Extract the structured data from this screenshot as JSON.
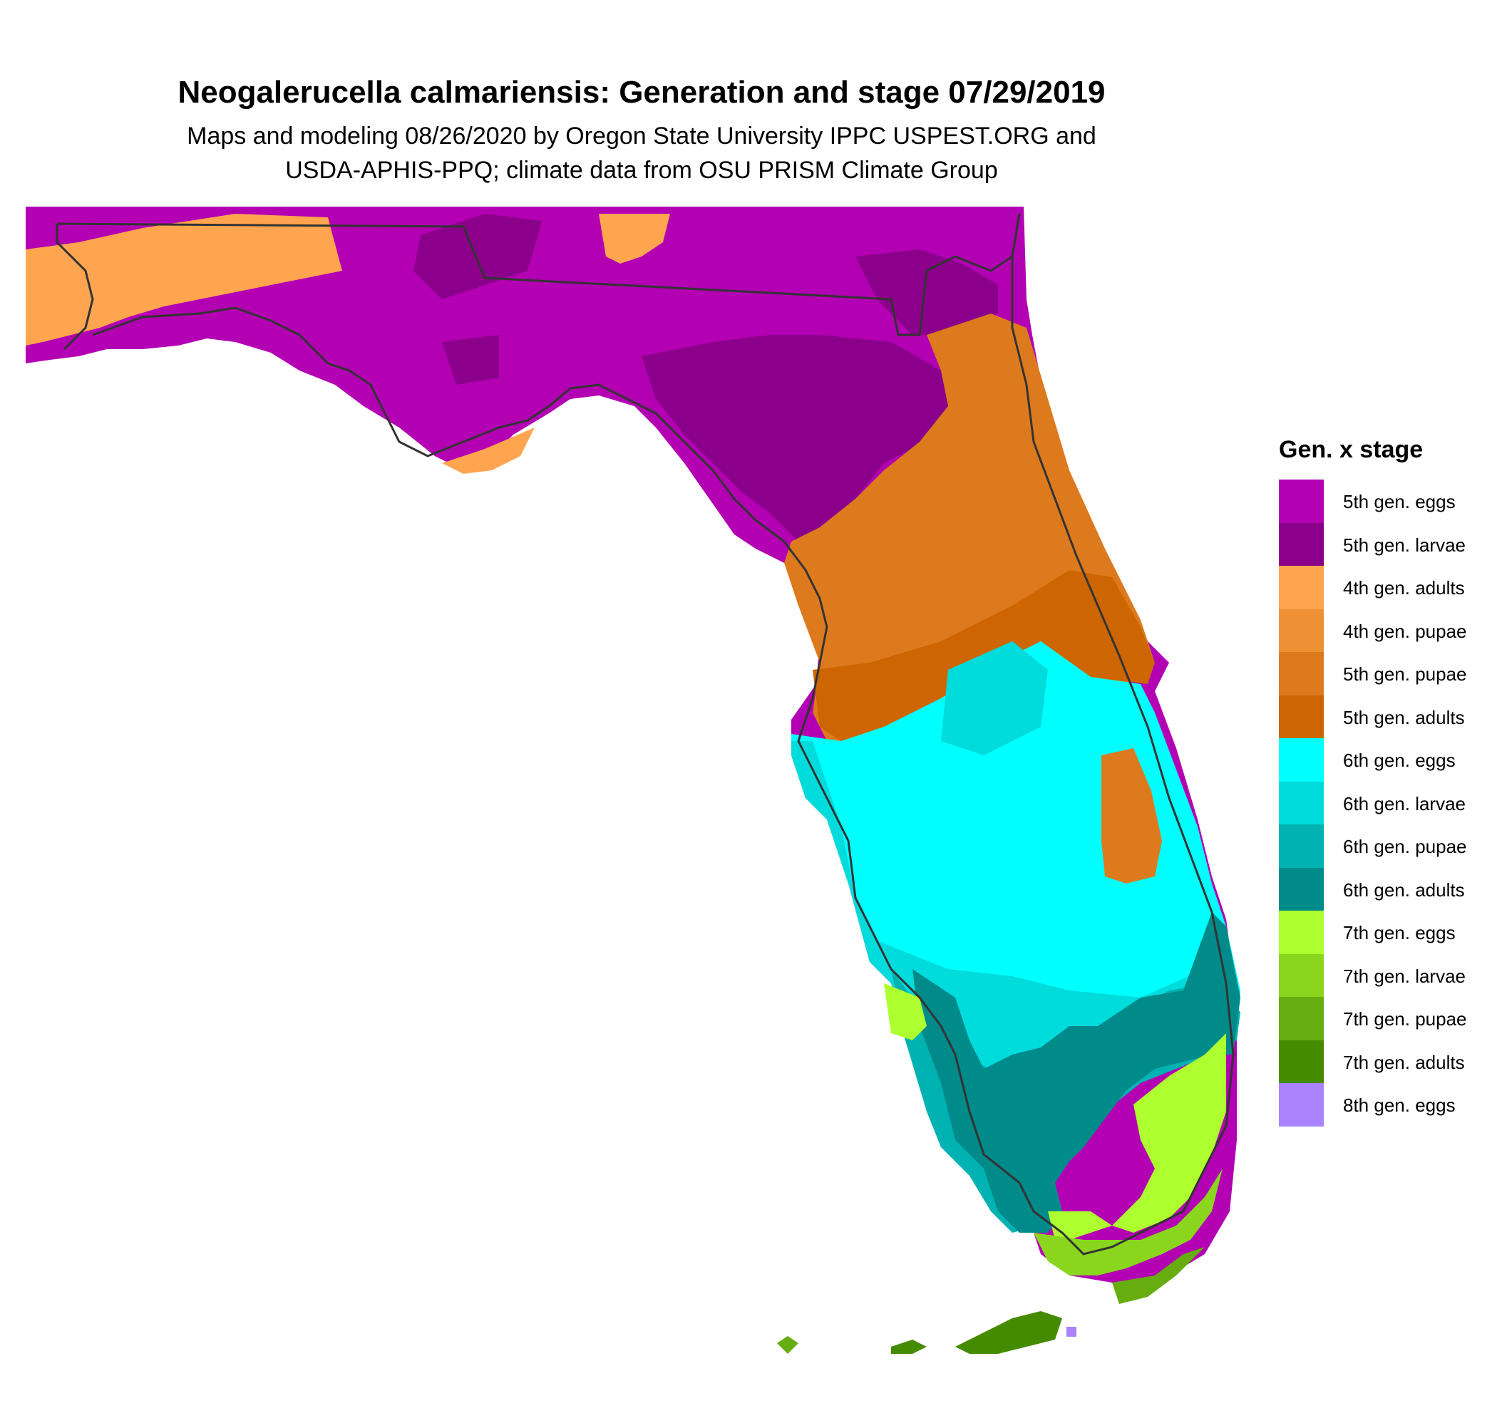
{
  "title": "Neogalerucella calmariensis: Generation and stage 07/29/2019",
  "subtitle_line1": "Maps and modeling 08/26/2020 by Oregon State University IPPC USPEST.ORG and",
  "subtitle_line2": "USDA-APHIS-PPQ; climate data from OSU PRISM Climate Group",
  "legend": {
    "title": "Gen. x stage",
    "items": [
      {
        "label": "5th gen. eggs",
        "color": "#b300b3"
      },
      {
        "label": "5th gen. larvae",
        "color": "#8b008b"
      },
      {
        "label": "4th gen. adults",
        "color": "#ffa54f"
      },
      {
        "label": "4th gen. pupae",
        "color": "#ee9135"
      },
      {
        "label": "5th gen. pupae",
        "color": "#dd7a1e"
      },
      {
        "label": "5th gen. adults",
        "color": "#cd6600"
      },
      {
        "label": "6th gen. eggs",
        "color": "#00ffff"
      },
      {
        "label": "6th gen. larvae",
        "color": "#00dbdb"
      },
      {
        "label": "6th gen. pupae",
        "color": "#00b2b2"
      },
      {
        "label": "6th gen. adults",
        "color": "#008b8b"
      },
      {
        "label": "7th gen. eggs",
        "color": "#adff2f"
      },
      {
        "label": "7th gen. larvae",
        "color": "#8ad61f"
      },
      {
        "label": "7th gen. pupae",
        "color": "#66ad10"
      },
      {
        "label": "7th gen. adults",
        "color": "#458b00"
      },
      {
        "label": "8th gen. eggs",
        "color": "#ab82ff"
      }
    ]
  }
}
